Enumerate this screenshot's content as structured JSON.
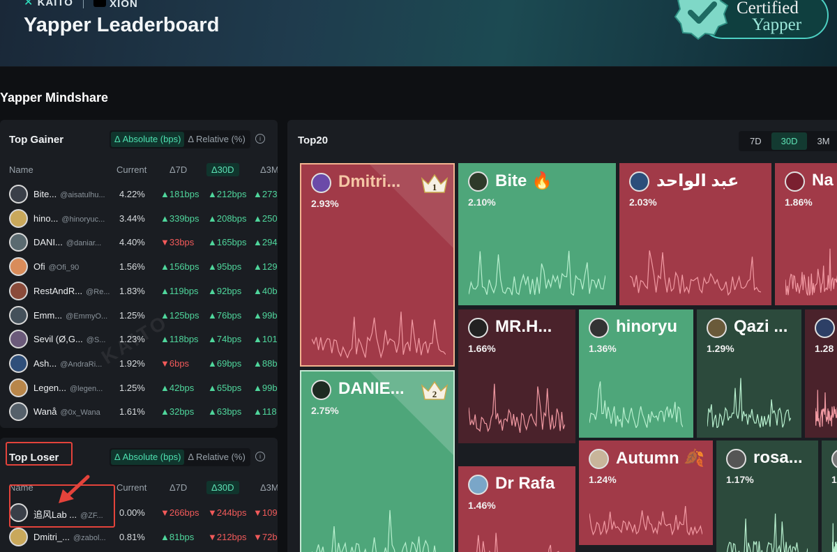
{
  "header": {
    "brand_left": "KAITO",
    "brand_right": "XION",
    "title": "Yapper Leaderboard",
    "cert_line1": "Certified",
    "cert_line2": "Yapper"
  },
  "section_title": "Yapper Mindshare",
  "top_gainer": {
    "title": "Top Gainer",
    "toggle": [
      "Δ Absolute (bps)",
      "Δ Relative (%)"
    ],
    "columns": [
      "Name",
      "Current",
      "Δ7D",
      "Δ30D",
      "Δ3M"
    ],
    "rows": [
      {
        "name": "Bite...",
        "handle": "@aisatulhu...",
        "current": "4.22%",
        "d7": "▲181bps",
        "d7dir": "up",
        "d30": "▲212bps",
        "d3m": "▲273"
      },
      {
        "name": "hino...",
        "handle": "@hinoryuc...",
        "current": "3.44%",
        "d7": "▲339bps",
        "d7dir": "up",
        "d30": "▲208bps",
        "d3m": "▲250"
      },
      {
        "name": "DANI...",
        "handle": "@daniar...",
        "current": "4.40%",
        "d7": "▼33bps",
        "d7dir": "dn",
        "d30": "▲165bps",
        "d3m": "▲294"
      },
      {
        "name": "Ofi",
        "handle": "@Ofi_90",
        "current": "1.56%",
        "d7": "▲156bps",
        "d7dir": "up",
        "d30": "▲95bps",
        "d3m": "▲129"
      },
      {
        "name": "RestAndR...",
        "handle": "@Re...",
        "current": "1.83%",
        "d7": "▲119bps",
        "d7dir": "up",
        "d30": "▲92bps",
        "d3m": "▲40b"
      },
      {
        "name": "Emm...",
        "handle": "@EmmyO...",
        "current": "1.25%",
        "d7": "▲125bps",
        "d7dir": "up",
        "d30": "▲76bps",
        "d3m": "▲99b"
      },
      {
        "name": "Sevil (Ø,G...",
        "handle": "@S...",
        "current": "1.23%",
        "d7": "▲118bps",
        "d7dir": "up",
        "d30": "▲74bps",
        "d3m": "▲101"
      },
      {
        "name": "Ash...",
        "handle": "@AndraRi...",
        "current": "1.92%",
        "d7": "▼6bps",
        "d7dir": "dn",
        "d30": "▲69bps",
        "d3m": "▲88b"
      },
      {
        "name": "Legen...",
        "handle": "@legen...",
        "current": "1.25%",
        "d7": "▲42bps",
        "d7dir": "up",
        "d30": "▲65bps",
        "d3m": "▲99b"
      },
      {
        "name": "Wanå",
        "handle": "@0x_Wana",
        "current": "1.61%",
        "d7": "▲32bps",
        "d7dir": "up",
        "d30": "▲63bps",
        "d3m": "▲118"
      }
    ]
  },
  "top_loser": {
    "title": "Top Loser",
    "toggle": [
      "Δ Absolute (bps)",
      "Δ Relative (%)"
    ],
    "columns": [
      "Name",
      "Current",
      "Δ7D",
      "Δ30D",
      "Δ3M"
    ],
    "rows": [
      {
        "name": "追风Lab ...",
        "handle": "@ZF...",
        "current": "0.00%",
        "d7": "▼266bps",
        "d7dir": "dn",
        "d30": "▼244bps",
        "d3m": "▼109"
      },
      {
        "name": "Dmitri_...",
        "handle": "@zabol...",
        "current": "0.81%",
        "d7": "▲81bps",
        "d7dir": "up",
        "d30": "▼212bps",
        "d3m": "▼72b"
      }
    ]
  },
  "watermark": "KAITO",
  "top20": {
    "title": "Top20",
    "ranges": [
      "7D",
      "30D",
      "3M"
    ],
    "tiles": [
      {
        "name": "Dmitri...",
        "pct": "2.93%",
        "badge": "1"
      },
      {
        "name": "Bite 🔥",
        "pct": "2.10%"
      },
      {
        "name": "عبد الواحد",
        "pct": "2.03%"
      },
      {
        "name": "Na",
        "pct": "1.86%"
      },
      {
        "name": "DANIE...",
        "pct": "2.75%",
        "badge": "2"
      },
      {
        "name": "MR.H...",
        "pct": "1.66%"
      },
      {
        "name": "hinoryu",
        "pct": "1.36%"
      },
      {
        "name": "Qazi ...",
        "pct": "1.29%"
      },
      {
        "name": "",
        "pct": "1.28"
      },
      {
        "name": "Dr Rafa",
        "pct": "1.46%"
      },
      {
        "name": "Autumn 🍂",
        "pct": "1.24%"
      },
      {
        "name": "rosa...",
        "pct": "1.17%"
      },
      {
        "name": "",
        "pct": "1."
      }
    ]
  },
  "colors": {
    "up": "#4fd69c",
    "down": "#f25a5a",
    "accent": "#5ee3b6",
    "annotation": "#e4433b"
  }
}
